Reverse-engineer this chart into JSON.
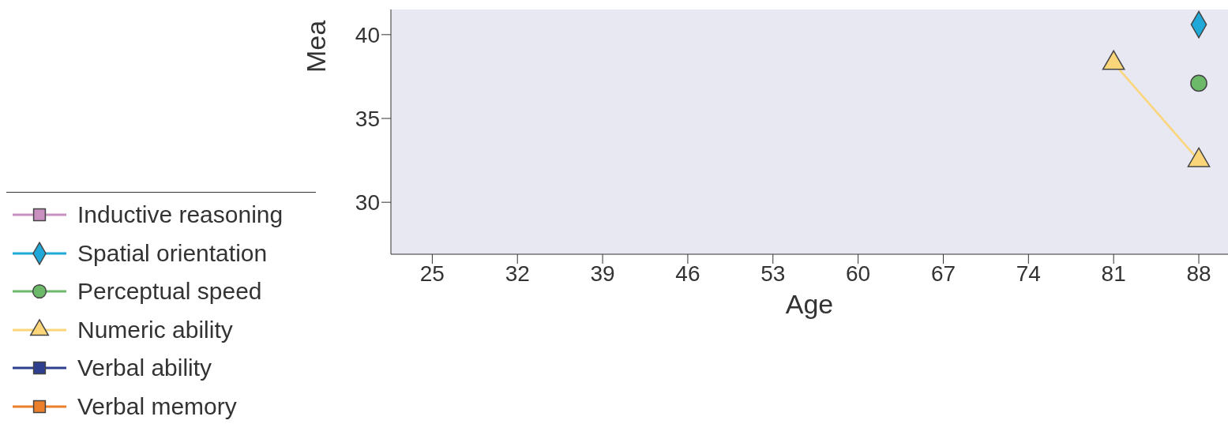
{
  "chart_data": {
    "type": "line",
    "xlabel": "Age",
    "ylabel": "Mea",
    "x": [
      81,
      88
    ],
    "xlim": [
      21.6,
      90.4
    ],
    "xticks": [
      25,
      32,
      39,
      46,
      53,
      60,
      67,
      74,
      81,
      88
    ],
    "ylim": [
      26.9,
      41.5
    ],
    "yticks": [
      30,
      35,
      40
    ],
    "legend": "left",
    "series": [
      {
        "name": "Inductive reasoning",
        "color": "#c88fbf",
        "marker": "square",
        "values": [
          null,
          null
        ]
      },
      {
        "name": "Spatial orientation",
        "color": "#1fa8d8",
        "marker": "diamond",
        "values": [
          null,
          40.6
        ]
      },
      {
        "name": "Perceptual speed",
        "color": "#6cb96a",
        "marker": "circle",
        "values": [
          null,
          37.1
        ]
      },
      {
        "name": "Numeric ability",
        "color": "#fbd57a",
        "marker": "triangle",
        "values": [
          38.3,
          32.5
        ]
      },
      {
        "name": "Verbal ability",
        "color": "#2e3f8f",
        "marker": "square",
        "values": [
          null,
          null
        ]
      },
      {
        "name": "Verbal memory",
        "color": "#ec7f2c",
        "marker": "square",
        "values": [
          null,
          null
        ]
      }
    ]
  }
}
